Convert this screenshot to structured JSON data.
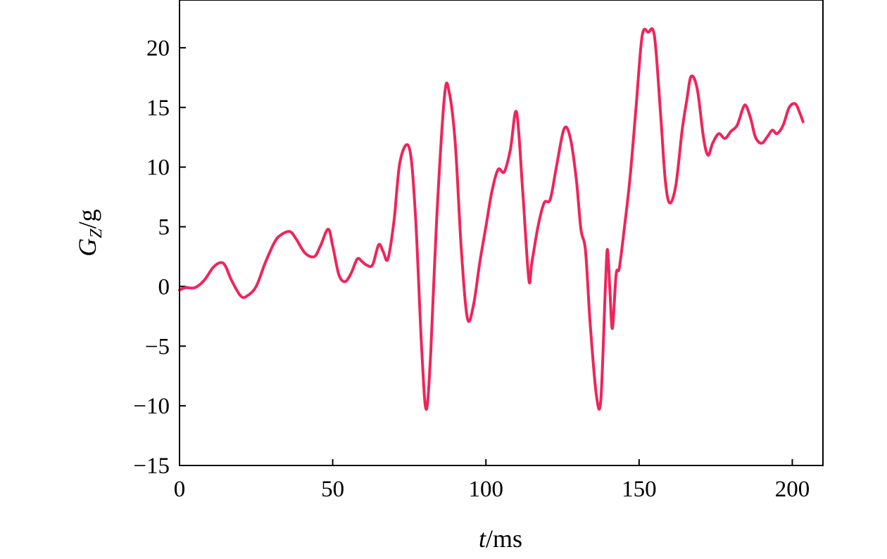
{
  "chart_data": {
    "type": "line",
    "xlabel": {
      "var": "t",
      "unit": "/ms"
    },
    "ylabel": {
      "var": "G",
      "sub": "Z",
      "unit": "/g"
    },
    "xlim": [
      0,
      210
    ],
    "ylim": [
      -15,
      24
    ],
    "xticks": [
      0,
      50,
      100,
      150,
      200
    ],
    "yticks": [
      -15,
      -10,
      -5,
      0,
      5,
      10,
      15,
      20
    ],
    "grid": false,
    "line_color": "#f0245a",
    "series": [
      {
        "x": [
          0,
          2,
          5,
          8,
          11,
          13.5,
          15,
          17,
          20,
          22,
          25,
          28,
          31,
          33,
          36,
          38,
          41,
          44,
          46,
          48.5,
          50,
          52,
          54,
          56,
          58,
          59.5,
          61,
          63,
          65,
          66.5,
          68,
          70,
          72,
          75,
          77,
          79,
          80.5,
          82,
          84,
          86.5,
          88,
          90,
          92,
          94,
          96,
          98,
          100,
          102,
          104,
          106,
          108,
          110,
          112,
          114,
          115,
          117,
          119,
          121,
          123,
          125.5,
          127.5,
          129.5,
          131,
          132.5,
          134,
          136,
          137.5,
          139,
          139.7,
          140.5,
          141.3,
          142.5,
          143.5,
          145,
          147,
          149,
          151,
          153,
          155,
          157,
          158.5,
          160,
          162,
          164,
          165.5,
          167,
          169,
          171,
          172.5,
          174,
          176,
          178,
          180,
          182,
          184,
          185,
          186.5,
          188,
          190,
          192,
          193.5,
          195,
          197,
          199,
          201,
          202.5,
          203.5
        ],
        "values": [
          -0.3,
          -0.1,
          -0.1,
          0.5,
          1.6,
          2.0,
          1.7,
          0.5,
          -0.8,
          -0.8,
          0,
          2.0,
          3.7,
          4.3,
          4.6,
          4.0,
          2.8,
          2.5,
          3.4,
          4.8,
          3.4,
          1.0,
          0.4,
          1.1,
          2.3,
          2.1,
          1.8,
          1.8,
          3.5,
          2.9,
          2.3,
          5.5,
          10.5,
          11.6,
          6.0,
          -5.0,
          -10.3,
          -5.5,
          6.0,
          16.0,
          16.3,
          12.0,
          3.0,
          -2.7,
          -1.5,
          2.0,
          5.0,
          8.0,
          9.8,
          9.6,
          11.5,
          14.6,
          8.0,
          0.6,
          2.0,
          5.0,
          7.0,
          7.3,
          10.0,
          13.2,
          12.5,
          9.0,
          4.8,
          3.0,
          -3.0,
          -9.0,
          -9.5,
          0,
          3.1,
          -0.5,
          -3.5,
          1.0,
          1.5,
          4.5,
          9.0,
          15.0,
          21.0,
          21.3,
          21.0,
          14.5,
          9.0,
          7.0,
          8.5,
          13.0,
          15.5,
          17.6,
          16.5,
          12.5,
          11.0,
          12.0,
          12.8,
          12.4,
          13.0,
          13.5,
          15.0,
          15.1,
          14.0,
          12.5,
          12.0,
          12.6,
          13.1,
          12.8,
          13.5,
          15.0,
          15.3,
          14.5,
          13.8
        ]
      }
    ]
  }
}
